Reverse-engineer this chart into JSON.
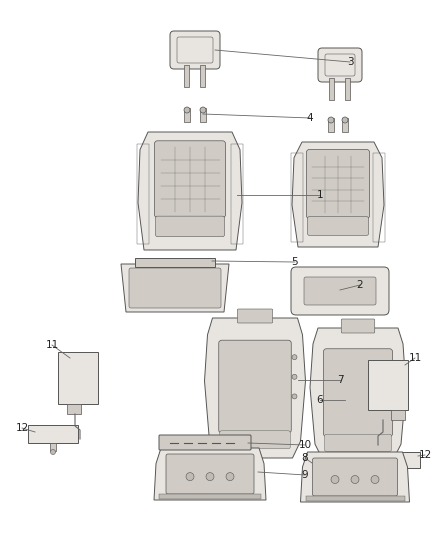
{
  "background_color": "#ffffff",
  "figure_width": 4.38,
  "figure_height": 5.33,
  "dpi": 100,
  "line_color": "#666666",
  "label_color": "#222222",
  "label_fontsize": 7.5,
  "part_fill": "#e8e5e0",
  "part_fill2": "#d0ccc5",
  "part_fill3": "#c0bcb5",
  "part_edge": "#555555",
  "edge_lw": 0.7,
  "inner_lw": 0.5
}
